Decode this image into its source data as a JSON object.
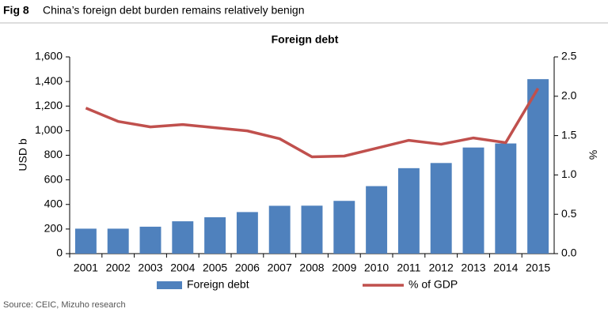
{
  "chart_data": {
    "type": "bar_line",
    "figure_label": "Fig 8",
    "caption": "China’s foreign debt burden remains relatively benign",
    "title": "Foreign debt",
    "y_label": "USD b",
    "y2_label": "%",
    "source": "Source: CEIC, Mizuho research",
    "categories": [
      "2001",
      "2002",
      "2003",
      "2004",
      "2005",
      "2006",
      "2007",
      "2008",
      "2009",
      "2010",
      "2011",
      "2012",
      "2013",
      "2014",
      "2015"
    ],
    "series": [
      {
        "name": "Foreign debt",
        "type": "bar",
        "color": "#4f81bd",
        "values": [
          203,
          203,
          219,
          263,
          296,
          338,
          389,
          390,
          429,
          549,
          695,
          737,
          863,
          896,
          1419
        ]
      },
      {
        "name": "% of GDP",
        "type": "line",
        "axis": "y2",
        "color": "#c0504d",
        "values": [
          1.85,
          1.68,
          1.61,
          1.64,
          1.6,
          1.56,
          1.46,
          1.23,
          1.24,
          1.34,
          1.44,
          1.39,
          1.47,
          1.41,
          2.1
        ]
      }
    ],
    "ylim": [
      0,
      1600
    ],
    "yticks": [
      0,
      200,
      400,
      600,
      800,
      {
        "value": 1000,
        "label": "1,000"
      },
      {
        "value": 1200,
        "label": "1,200"
      },
      {
        "value": 1400,
        "label": "1,400"
      },
      {
        "value": 1600,
        "label": "1,600"
      }
    ],
    "y2lim": [
      0,
      2.5
    ],
    "y2ticks": [
      {
        "value": 0,
        "label": "0.0"
      },
      0.5,
      {
        "value": 1,
        "label": "1.0"
      },
      1.5,
      {
        "value": 2,
        "label": "2.0"
      },
      2.5
    ],
    "grid": false,
    "legend": "bottom"
  }
}
